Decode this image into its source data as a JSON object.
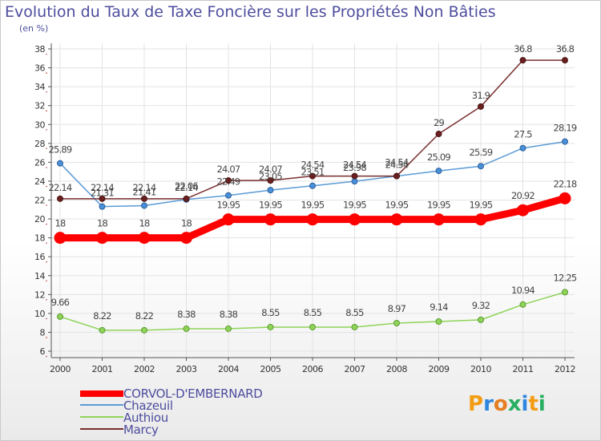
{
  "title": "Evolution du Taux de Taxe Foncière sur les Propriétés Non Bâties",
  "unit_label": "(en %)",
  "logo": "Proxiti",
  "chart_data": {
    "type": "line",
    "title": "Evolution du Taux de Taxe Foncière sur les Propriétés Non Bâties",
    "ylabel": "(en %)",
    "xlabel": "",
    "x": [
      "2000",
      "2001",
      "2002",
      "2003",
      "2004",
      "2005",
      "2006",
      "2007",
      "2008",
      "2009",
      "2010",
      "2011",
      "2012"
    ],
    "ylim": [
      6,
      38
    ],
    "yticks": [
      6,
      8,
      10,
      12,
      14,
      16,
      18,
      20,
      22,
      24,
      26,
      28,
      30,
      32,
      34,
      36,
      38
    ],
    "legend_position": "bottom-left",
    "series": [
      {
        "name": "CORVOL-D'EMBERNARD",
        "color": "#ff0000",
        "values": [
          18,
          18,
          18,
          18,
          19.95,
          19.95,
          19.95,
          19.95,
          19.95,
          19.95,
          19.95,
          20.92,
          22.18
        ],
        "labels": [
          "18",
          "18",
          "18",
          "18",
          "19.95",
          "19.95",
          "19.95",
          "19.95",
          "19.95",
          "19.95",
          "19.95",
          "20.92",
          "22.18"
        ]
      },
      {
        "name": "Chazeuil",
        "color": "#5b9bd5",
        "values": [
          25.89,
          21.31,
          21.41,
          22.06,
          22.49,
          23.05,
          23.51,
          23.98,
          24.54,
          25.09,
          25.59,
          27.5,
          28.19
        ],
        "labels": [
          "25.89",
          "21.31",
          "21.41",
          "22.06",
          "22.49",
          "23.05",
          "23.51",
          "23.98",
          "24.54",
          "25.09",
          "25.59",
          "27.5",
          "28.19"
        ]
      },
      {
        "name": "Authiou",
        "color": "#8fd45a",
        "values": [
          9.66,
          8.22,
          8.22,
          8.38,
          8.38,
          8.55,
          8.55,
          8.55,
          8.97,
          9.14,
          9.32,
          10.94,
          12.25
        ],
        "labels": [
          "9.66",
          "8.22",
          "8.22",
          "8.38",
          "8.38",
          "8.55",
          "8.55",
          "8.55",
          "8.97",
          "9.14",
          "9.32",
          "10.94",
          "12.25"
        ]
      },
      {
        "name": "Marcy",
        "color": "#7a2e2e",
        "values": [
          22.14,
          22.14,
          22.14,
          22.14,
          24.07,
          24.07,
          24.54,
          24.54,
          24.54,
          29,
          31.9,
          36.8,
          36.8
        ],
        "labels": [
          "22.14",
          "22.14",
          "22.14",
          "22.14",
          "24.07",
          "24.07",
          "24.54",
          "24.54",
          "24.54",
          "29",
          "31.9",
          "36.8",
          "36.8"
        ]
      }
    ]
  }
}
